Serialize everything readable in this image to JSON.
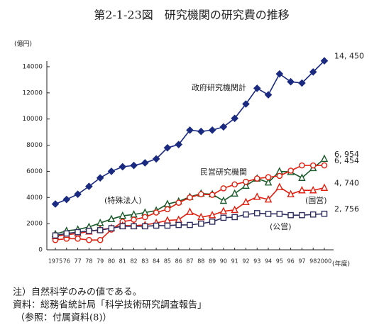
{
  "chart_data": {
    "type": "line",
    "title": "第2-1-23図　研究機関の研究費の推移",
    "y_label": "(億円)",
    "x_label": "(年度)",
    "categories": [
      "1975",
      "76",
      "77",
      "78",
      "79",
      "80",
      "81",
      "82",
      "83",
      "84",
      "85",
      "86",
      "87",
      "88",
      "89",
      "90",
      "91",
      "92",
      "93",
      "94",
      "95",
      "96",
      "97",
      "98",
      "2000"
    ],
    "ylim": [
      0,
      14000
    ],
    "yticks": [
      0,
      2000,
      4000,
      6000,
      8000,
      10000,
      12000,
      14000
    ],
    "series": [
      {
        "name": "政府研究機関計",
        "color": "#1a2a80",
        "marker": "diamond",
        "values": [
          3500,
          3850,
          4250,
          4850,
          5500,
          6000,
          6350,
          6450,
          6650,
          6950,
          7800,
          8050,
          9150,
          9050,
          9150,
          9400,
          10050,
          11150,
          12350,
          11850,
          13450,
          12850,
          12750,
          13600,
          14450
        ],
        "value_labels": [
          null,
          null,
          null,
          null,
          null,
          null,
          null,
          null,
          null,
          null,
          null,
          null,
          null,
          null,
          null,
          null,
          null,
          null,
          null,
          null,
          null,
          null,
          null,
          null,
          "14, 450"
        ]
      },
      {
        "name": "(特殊法人)",
        "color": "#1a5a2a",
        "marker": "triangle",
        "values": [
          1200,
          1450,
          1550,
          1750,
          2050,
          2350,
          2600,
          2700,
          2850,
          3000,
          3500,
          3700,
          4050,
          4300,
          4250,
          3750,
          4300,
          4900,
          5450,
          5150,
          6000,
          5950,
          5500,
          6250,
          6954
        ],
        "value_labels": [
          null,
          null,
          null,
          null,
          null,
          null,
          null,
          null,
          null,
          null,
          null,
          null,
          null,
          null,
          null,
          null,
          null,
          null,
          null,
          null,
          null,
          null,
          null,
          null,
          "6, 954"
        ]
      },
      {
        "name": "民営研究機関",
        "color": "#e02010",
        "marker": "circle",
        "values": [
          750,
          850,
          850,
          750,
          750,
          1550,
          2150,
          2300,
          2500,
          2850,
          3100,
          3600,
          4000,
          4250,
          4200,
          4700,
          5000,
          5200,
          5450,
          5550,
          5650,
          6050,
          6450,
          6450,
          6454
        ],
        "value_labels": [
          null,
          null,
          null,
          null,
          null,
          null,
          null,
          null,
          null,
          null,
          null,
          null,
          null,
          null,
          null,
          null,
          null,
          null,
          null,
          null,
          null,
          null,
          null,
          null,
          "6, 454"
        ]
      },
      {
        "name": "(国営)",
        "color": "#e02010",
        "marker": "triangle",
        "values": [
          1050,
          1150,
          1250,
          1400,
          1550,
          1650,
          1850,
          1850,
          1900,
          2050,
          2250,
          2300,
          2900,
          2500,
          2650,
          2950,
          3050,
          3650,
          4050,
          3850,
          4800,
          4250,
          4550,
          4550,
          4740
        ],
        "value_labels": [
          null,
          null,
          null,
          null,
          null,
          null,
          null,
          null,
          null,
          null,
          null,
          null,
          null,
          null,
          null,
          null,
          null,
          null,
          null,
          null,
          null,
          null,
          null,
          null,
          "4, 740"
        ]
      },
      {
        "name": "(公営)",
        "color": "#303060",
        "marker": "square",
        "values": [
          1100,
          1250,
          1350,
          1450,
          1500,
          1650,
          1800,
          1800,
          1800,
          1850,
          1850,
          1900,
          1900,
          2000,
          2150,
          2450,
          2500,
          2700,
          2800,
          2750,
          2750,
          2650,
          2650,
          2700,
          2756
        ],
        "value_labels": [
          null,
          null,
          null,
          null,
          null,
          null,
          null,
          null,
          null,
          null,
          null,
          null,
          null,
          null,
          null,
          null,
          null,
          null,
          null,
          null,
          null,
          null,
          null,
          null,
          "2, 756"
        ]
      }
    ],
    "notes": [
      "注）自然科学のみの値である。",
      "資料：総務省統計局「科学技術研究調査報告」",
      "（参照：付属資料(8)）"
    ]
  }
}
